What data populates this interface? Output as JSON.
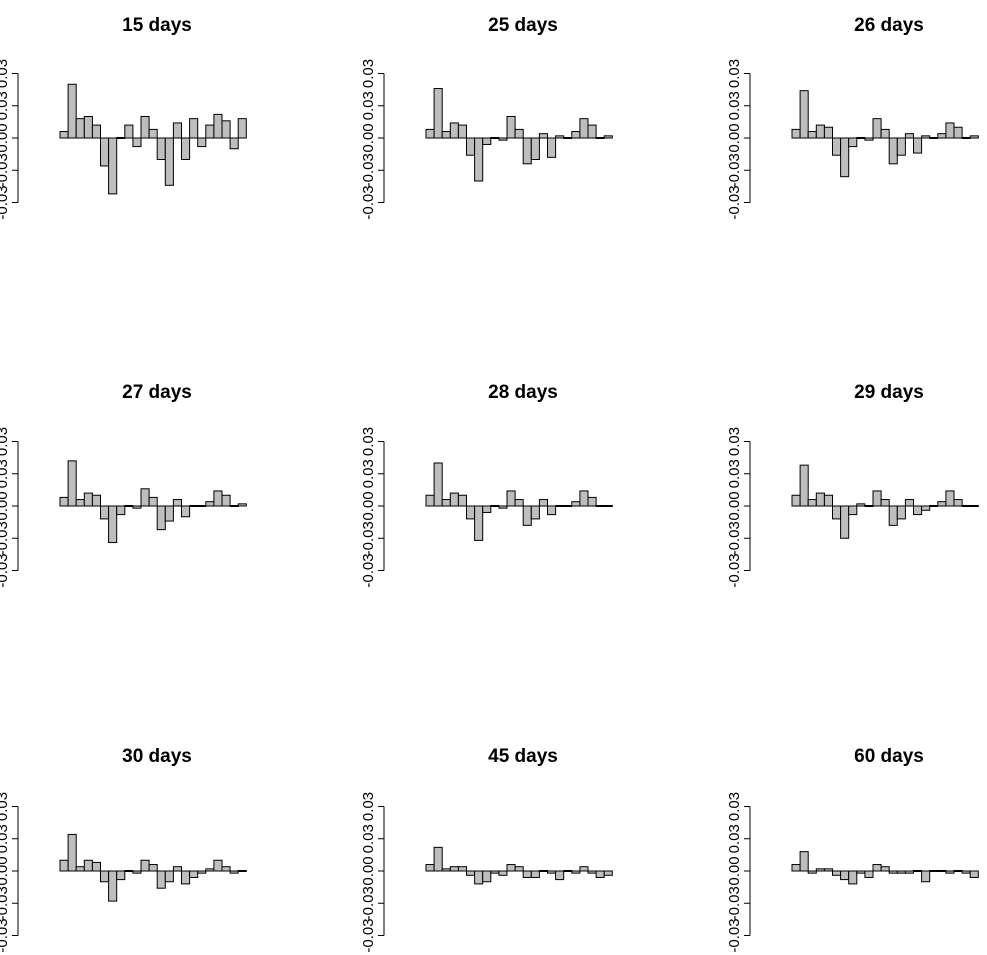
{
  "chart_data": [
    {
      "type": "bar",
      "title": "15 days",
      "ylim": [
        -0.03,
        0.03
      ],
      "yticks": [
        "-0.03",
        "-0.03",
        "0.00",
        "0.03",
        "0.03"
      ],
      "yticks_values": [
        -0.03,
        -0.015,
        0.0,
        0.015,
        0.03
      ],
      "values": [
        0.003,
        0.025,
        0.009,
        0.01,
        0.006,
        -0.013,
        -0.026,
        0.0,
        0.006,
        -0.004,
        0.01,
        0.004,
        -0.01,
        -0.022,
        0.007,
        -0.01,
        0.009,
        -0.004,
        0.006,
        0.011,
        0.008,
        -0.005,
        0.009
      ]
    },
    {
      "type": "bar",
      "title": "25 days",
      "ylim": [
        -0.03,
        0.03
      ],
      "yticks": [
        "-0.03",
        "-0.03",
        "0.00",
        "0.03",
        "0.03"
      ],
      "yticks_values": [
        -0.03,
        -0.015,
        0.0,
        0.015,
        0.03
      ],
      "values": [
        0.004,
        0.023,
        0.003,
        0.007,
        0.006,
        -0.008,
        -0.02,
        -0.003,
        0.0,
        -0.001,
        0.01,
        0.004,
        -0.012,
        -0.01,
        0.002,
        -0.009,
        0.001,
        0.0,
        0.003,
        0.009,
        0.006,
        0.0,
        0.001
      ]
    },
    {
      "type": "bar",
      "title": "26 days",
      "ylim": [
        -0.03,
        0.03
      ],
      "yticks": [
        "-0.03",
        "-0.03",
        "0.00",
        "0.03",
        "0.03"
      ],
      "yticks_values": [
        -0.03,
        -0.015,
        0.0,
        0.015,
        0.03
      ],
      "values": [
        0.004,
        0.022,
        0.003,
        0.006,
        0.005,
        -0.008,
        -0.018,
        -0.004,
        0.0,
        -0.001,
        0.009,
        0.004,
        -0.012,
        -0.008,
        0.002,
        -0.007,
        0.001,
        0.0,
        0.002,
        0.007,
        0.005,
        0.0,
        0.001
      ]
    },
    {
      "type": "bar",
      "title": "27 days",
      "ylim": [
        -0.03,
        0.03
      ],
      "yticks": [
        "-0.03",
        "-0.03",
        "0.00",
        "0.03",
        "0.03"
      ],
      "yticks_values": [
        -0.03,
        -0.015,
        0.0,
        0.015,
        0.03
      ],
      "values": [
        0.004,
        0.021,
        0.003,
        0.006,
        0.005,
        -0.006,
        -0.017,
        -0.004,
        0.0,
        -0.001,
        0.008,
        0.004,
        -0.011,
        -0.007,
        0.003,
        -0.005,
        0.0,
        0.0,
        0.002,
        0.007,
        0.005,
        0.0,
        0.001
      ]
    },
    {
      "type": "bar",
      "title": "28 days",
      "ylim": [
        -0.03,
        0.03
      ],
      "yticks": [
        "-0.03",
        "-0.03",
        "0.00",
        "0.03",
        "0.03"
      ],
      "yticks_values": [
        -0.03,
        -0.015,
        0.0,
        0.015,
        0.03
      ],
      "values": [
        0.005,
        0.02,
        0.003,
        0.006,
        0.005,
        -0.006,
        -0.016,
        -0.003,
        0.0,
        -0.001,
        0.007,
        0.003,
        -0.009,
        -0.006,
        0.003,
        -0.004,
        0.0,
        0.0,
        0.002,
        0.007,
        0.004,
        0.0,
        0.0
      ]
    },
    {
      "type": "bar",
      "title": "29 days",
      "ylim": [
        -0.03,
        0.03
      ],
      "yticks": [
        "-0.03",
        "-0.03",
        "0.00",
        "0.03",
        "0.03"
      ],
      "yticks_values": [
        -0.03,
        -0.015,
        0.0,
        0.015,
        0.03
      ],
      "values": [
        0.005,
        0.019,
        0.003,
        0.006,
        0.005,
        -0.006,
        -0.015,
        -0.004,
        0.001,
        0.0,
        0.007,
        0.003,
        -0.009,
        -0.006,
        0.003,
        -0.004,
        -0.002,
        0.0,
        0.002,
        0.007,
        0.003,
        0.0,
        0.0
      ]
    },
    {
      "type": "bar",
      "title": "30 days",
      "ylim": [
        -0.03,
        0.03
      ],
      "yticks": [
        "-0.03",
        "-0.03",
        "0.00",
        "0.03",
        "0.03"
      ],
      "yticks_values": [
        -0.03,
        -0.015,
        0.0,
        0.015,
        0.03
      ],
      "values": [
        0.005,
        0.017,
        0.002,
        0.005,
        0.004,
        -0.005,
        -0.014,
        -0.004,
        0.0,
        -0.001,
        0.005,
        0.003,
        -0.008,
        -0.005,
        0.002,
        -0.006,
        -0.003,
        -0.001,
        0.001,
        0.005,
        0.002,
        -0.001,
        0.0
      ]
    },
    {
      "type": "bar",
      "title": "45 days",
      "ylim": [
        -0.03,
        0.03
      ],
      "yticks": [
        "-0.03",
        "-0.03",
        "0.00",
        "0.03",
        "0.03"
      ],
      "yticks_values": [
        -0.03,
        -0.015,
        0.0,
        0.015,
        0.03
      ],
      "values": [
        0.003,
        0.011,
        0.001,
        0.002,
        0.002,
        -0.002,
        -0.006,
        -0.005,
        -0.001,
        -0.002,
        0.003,
        0.002,
        -0.003,
        -0.003,
        0.0,
        -0.001,
        -0.004,
        0.0,
        -0.001,
        0.002,
        -0.001,
        -0.003,
        -0.002
      ]
    },
    {
      "type": "bar",
      "title": "60 days",
      "ylim": [
        -0.03,
        0.03
      ],
      "yticks": [
        "-0.03",
        "-0.03",
        "0.00",
        "0.03",
        "0.03"
      ],
      "yticks_values": [
        -0.03,
        -0.015,
        0.0,
        0.015,
        0.03
      ],
      "values": [
        0.003,
        0.009,
        -0.001,
        0.001,
        0.001,
        -0.002,
        -0.004,
        -0.006,
        -0.001,
        -0.003,
        0.003,
        0.002,
        -0.001,
        -0.001,
        -0.001,
        0.0,
        -0.005,
        0.0,
        0.0,
        -0.001,
        0.0,
        -0.001,
        -0.003
      ]
    }
  ],
  "colors": {
    "bar_fill": "#bebebe",
    "bar_stroke": "#000000",
    "axis": "#000000",
    "background": "#ffffff"
  }
}
